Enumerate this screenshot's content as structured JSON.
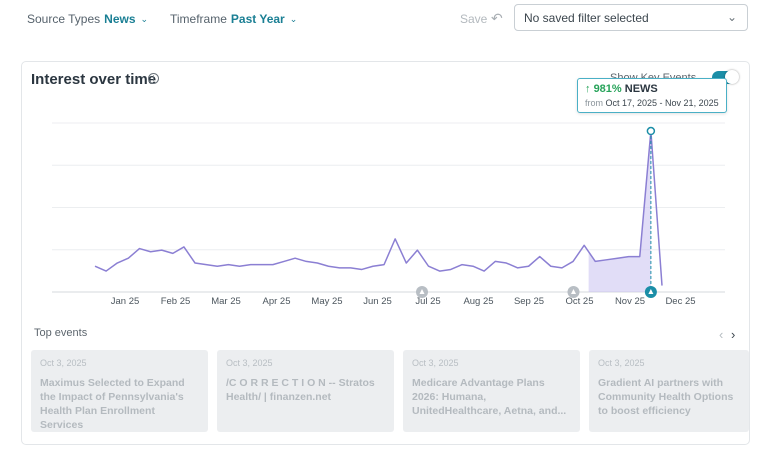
{
  "filters": {
    "source_types": {
      "label": "Source Types",
      "value": "News"
    },
    "timeframe": {
      "label": "Timeframe",
      "value": "Past Year"
    }
  },
  "save_label": "Save",
  "saved_filter": {
    "value": "No saved filter selected"
  },
  "card": {
    "title": "Interest over time",
    "key_events_label": "Show Key Events",
    "key_events_on": true
  },
  "tooltip": {
    "arrow": "↑",
    "percent": "981%",
    "source": "NEWS",
    "from_label": "from",
    "range": "Oct 17, 2025 - Nov 21, 2025"
  },
  "chart_data": {
    "type": "line",
    "x_tick_labels": [
      "Jan 25",
      "Feb 25",
      "Mar 25",
      "Apr 25",
      "May 25",
      "Jun 25",
      "Jul 25",
      "Aug 25",
      "Sep 25",
      "Oct 25",
      "Nov 25",
      "Dec 25"
    ],
    "values": [
      16,
      13,
      18,
      21,
      27,
      25,
      26,
      24,
      28,
      18,
      17,
      16,
      17,
      16,
      17,
      17,
      17,
      19,
      21,
      19,
      18,
      16,
      15,
      15,
      14,
      16,
      17,
      33,
      18,
      26,
      16,
      13,
      14,
      17,
      16,
      13,
      19,
      18,
      15,
      16,
      22,
      16,
      15,
      19,
      29,
      19,
      20,
      21,
      22,
      22,
      100,
      4
    ],
    "ylim": [
      0,
      105
    ],
    "grid": true,
    "highlight_range": [
      "Oct 17, 2025",
      "Nov 21, 2025"
    ],
    "peak_value": 100,
    "key_event_markers": [
      "Jul 25",
      "Oct 25",
      "Nov 25"
    ],
    "colors": {
      "line": "#8b7fd3",
      "fill": "#c9c1f1",
      "marker": "#1b8ea7",
      "event_marker": "#b8bec4"
    }
  },
  "top_events": {
    "label": "Top events",
    "items": [
      {
        "date": "Oct 3, 2025",
        "title": "Maximus Selected to Expand the Impact of Pennsylvania's Health Plan Enrollment Services"
      },
      {
        "date": "Oct 3, 2025",
        "title": "/C O R R E C T I O N -- Stratos Health/ | finanzen.net"
      },
      {
        "date": "Oct 3, 2025",
        "title": "Medicare Advantage Plans 2026: Humana, UnitedHealthcare, Aetna, and..."
      },
      {
        "date": "Oct 3, 2025",
        "title": "Gradient AI partners with Community Health Options to boost efficiency"
      }
    ]
  }
}
